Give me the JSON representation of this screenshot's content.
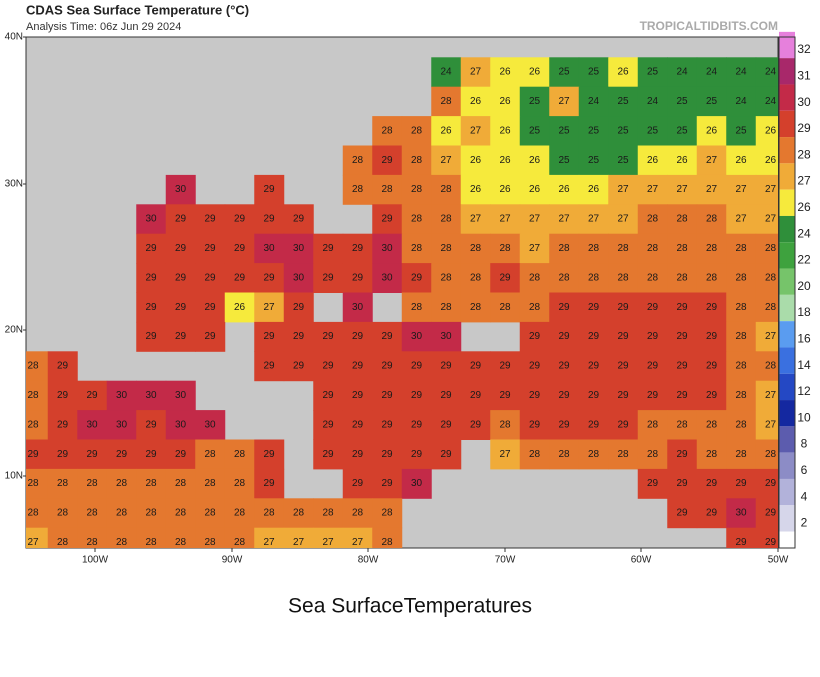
{
  "header": {
    "title": "CDAS Sea Surface Temperature (°C)",
    "subtitle": "Analysis Time: 06z Jun 29 2024",
    "credit": "TROPICALTIDBITS.COM"
  },
  "map": {
    "lat_labels": [
      "40N",
      "30N",
      "20N",
      "10N"
    ],
    "lon_labels": [
      "100W",
      "90W",
      "80W",
      "70W",
      "60W",
      "50W"
    ],
    "grid": [
      [
        null,
        null,
        null,
        null,
        null,
        null,
        null,
        null,
        null,
        null,
        null,
        null,
        null,
        null,
        24,
        27,
        26,
        26,
        25,
        25,
        26,
        25,
        24,
        24,
        24,
        24
      ],
      [
        null,
        null,
        null,
        null,
        null,
        null,
        null,
        null,
        null,
        null,
        null,
        null,
        null,
        null,
        28,
        26,
        26,
        25,
        27,
        24,
        25,
        24,
        25,
        25,
        24,
        24
      ],
      [
        null,
        null,
        null,
        null,
        null,
        null,
        null,
        null,
        null,
        null,
        null,
        null,
        28,
        28,
        26,
        27,
        26,
        25,
        25,
        25,
        25,
        25,
        25,
        26,
        25,
        26
      ],
      [
        null,
        null,
        null,
        null,
        null,
        null,
        null,
        null,
        null,
        null,
        null,
        28,
        29,
        28,
        27,
        26,
        26,
        26,
        25,
        25,
        25,
        26,
        26,
        27,
        26,
        26
      ],
      [
        null,
        null,
        null,
        null,
        null,
        30,
        null,
        null,
        29,
        null,
        null,
        28,
        28,
        28,
        28,
        26,
        26,
        26,
        26,
        26,
        27,
        27,
        27,
        27,
        27,
        27
      ],
      [
        null,
        null,
        null,
        null,
        30,
        29,
        29,
        29,
        29,
        29,
        null,
        null,
        29,
        28,
        28,
        27,
        27,
        27,
        27,
        27,
        27,
        28,
        28,
        28,
        27,
        27
      ],
      [
        null,
        null,
        null,
        null,
        29,
        29,
        29,
        29,
        30,
        30,
        29,
        29,
        30,
        28,
        28,
        28,
        28,
        27,
        28,
        28,
        28,
        28,
        28,
        28,
        28,
        28
      ],
      [
        null,
        null,
        null,
        null,
        29,
        29,
        29,
        29,
        29,
        30,
        29,
        29,
        30,
        29,
        28,
        28,
        29,
        28,
        28,
        28,
        28,
        28,
        28,
        28,
        28,
        28
      ],
      [
        null,
        null,
        null,
        null,
        29,
        29,
        29,
        26,
        27,
        29,
        null,
        30,
        null,
        28,
        28,
        28,
        28,
        28,
        29,
        29,
        29,
        29,
        29,
        29,
        28,
        28
      ],
      [
        null,
        null,
        null,
        null,
        29,
        29,
        29,
        null,
        29,
        29,
        29,
        29,
        29,
        30,
        30,
        null,
        null,
        29,
        29,
        29,
        29,
        29,
        29,
        29,
        28,
        27
      ],
      [
        28,
        29,
        null,
        null,
        null,
        null,
        null,
        null,
        29,
        29,
        29,
        29,
        29,
        29,
        29,
        29,
        29,
        29,
        29,
        29,
        29,
        29,
        29,
        29,
        28,
        28
      ],
      [
        28,
        29,
        29,
        30,
        30,
        30,
        null,
        null,
        null,
        null,
        29,
        29,
        29,
        29,
        29,
        29,
        29,
        29,
        29,
        29,
        29,
        29,
        29,
        29,
        28,
        27
      ],
      [
        28,
        29,
        30,
        30,
        29,
        30,
        30,
        null,
        null,
        null,
        29,
        29,
        29,
        29,
        29,
        29,
        28,
        29,
        29,
        29,
        29,
        28,
        28,
        28,
        28,
        27
      ],
      [
        29,
        29,
        29,
        29,
        29,
        29,
        28,
        28,
        29,
        null,
        29,
        29,
        29,
        29,
        29,
        null,
        27,
        28,
        28,
        28,
        28,
        28,
        29,
        28,
        28,
        28
      ],
      [
        28,
        28,
        28,
        28,
        28,
        28,
        28,
        28,
        29,
        null,
        null,
        29,
        29,
        30,
        null,
        null,
        null,
        null,
        null,
        null,
        null,
        29,
        29,
        29,
        29,
        29
      ],
      [
        28,
        28,
        28,
        28,
        28,
        28,
        28,
        28,
        28,
        28,
        28,
        28,
        28,
        null,
        null,
        null,
        null,
        null,
        null,
        null,
        null,
        null,
        29,
        29,
        30,
        29
      ],
      [
        27,
        28,
        28,
        28,
        28,
        28,
        28,
        28,
        27,
        27,
        27,
        27,
        28,
        null,
        null,
        null,
        null,
        null,
        null,
        null,
        null,
        null,
        null,
        null,
        29,
        29
      ]
    ]
  },
  "colorbar": {
    "ticks": [
      32,
      31,
      30,
      29,
      28,
      27,
      26,
      24,
      22,
      20,
      18,
      16,
      14,
      12,
      10,
      8,
      6,
      4,
      2
    ],
    "colors": [
      "#e680dc",
      "#a8286a",
      "#c32a48",
      "#d4402c",
      "#e4782f",
      "#f0ab38",
      "#f6ea3c",
      "#2f8f3a",
      "#3ea23e",
      "#76c46a",
      "#aadcaa",
      "#5a9cf0",
      "#3a70e0",
      "#2448c4",
      "#1428a0",
      "#5c5cae",
      "#8c8cc6",
      "#b2b2da",
      "#d6d6ea"
    ]
  },
  "caption": "Sea SurfaceTemperatures"
}
